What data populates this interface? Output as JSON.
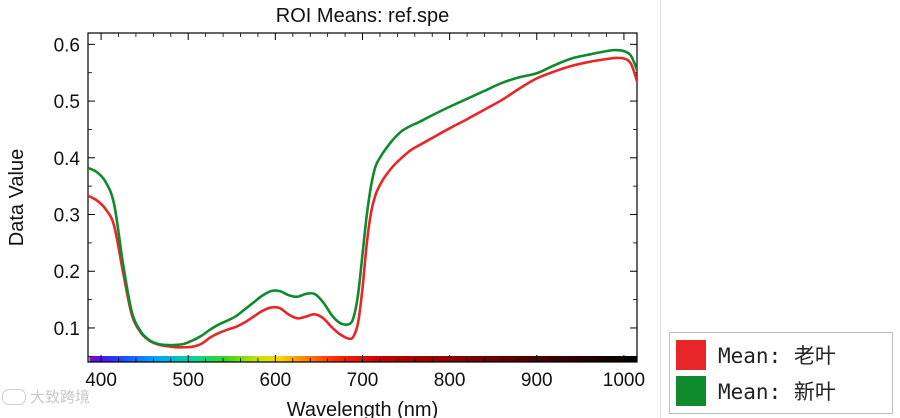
{
  "chart_data": {
    "type": "line",
    "title": "ROI Means: ref.spe",
    "xlabel": "Wavelength (nm)",
    "ylabel": "Data Value",
    "xlim": [
      385,
      1015
    ],
    "ylim": [
      0.04,
      0.62
    ],
    "x_ticks": [
      400,
      500,
      600,
      700,
      800,
      900,
      1000
    ],
    "x_tick_labels": [
      "400",
      "500",
      "600",
      "700",
      "800",
      "900",
      "1000"
    ],
    "y_ticks": [
      0.1,
      0.2,
      0.3,
      0.4,
      0.5,
      0.6
    ],
    "y_tick_labels": [
      "0.1",
      "0.2",
      "0.3",
      "0.4",
      "0.5",
      "0.6"
    ],
    "grid": false,
    "legend_position": "right-bottom",
    "series": [
      {
        "name": "Mean: 老叶",
        "color": "#e8262a",
        "x": [
          385,
          395,
          405,
          415,
          425,
          435,
          445,
          455,
          465,
          475,
          485,
          495,
          505,
          515,
          525,
          535,
          545,
          555,
          565,
          575,
          585,
          595,
          605,
          615,
          625,
          635,
          645,
          655,
          665,
          675,
          685,
          690,
          695,
          700,
          705,
          710,
          715,
          720,
          725,
          735,
          745,
          755,
          765,
          780,
          800,
          820,
          840,
          860,
          880,
          900,
          920,
          940,
          960,
          980,
          990,
          1000,
          1008,
          1015
        ],
        "y": [
          0.333,
          0.325,
          0.31,
          0.28,
          0.2,
          0.125,
          0.093,
          0.078,
          0.071,
          0.068,
          0.066,
          0.066,
          0.067,
          0.072,
          0.083,
          0.091,
          0.097,
          0.102,
          0.11,
          0.12,
          0.13,
          0.136,
          0.135,
          0.124,
          0.117,
          0.12,
          0.124,
          0.117,
          0.101,
          0.088,
          0.081,
          0.086,
          0.11,
          0.17,
          0.25,
          0.305,
          0.335,
          0.352,
          0.365,
          0.385,
          0.4,
          0.413,
          0.422,
          0.435,
          0.452,
          0.468,
          0.485,
          0.502,
          0.522,
          0.54,
          0.552,
          0.562,
          0.569,
          0.574,
          0.576,
          0.575,
          0.566,
          0.535
        ]
      },
      {
        "name": "Mean: 新叶",
        "color": "#0f8a2c",
        "x": [
          385,
          395,
          405,
          415,
          425,
          435,
          445,
          455,
          465,
          475,
          485,
          495,
          505,
          515,
          525,
          535,
          545,
          555,
          565,
          575,
          585,
          595,
          605,
          615,
          625,
          635,
          645,
          655,
          665,
          675,
          685,
          690,
          695,
          700,
          705,
          710,
          715,
          720,
          725,
          735,
          745,
          755,
          765,
          780,
          800,
          820,
          840,
          860,
          880,
          900,
          920,
          940,
          960,
          980,
          990,
          1000,
          1008,
          1015
        ],
        "y": [
          0.382,
          0.375,
          0.358,
          0.318,
          0.215,
          0.13,
          0.095,
          0.079,
          0.072,
          0.07,
          0.07,
          0.072,
          0.078,
          0.086,
          0.097,
          0.106,
          0.113,
          0.121,
          0.133,
          0.145,
          0.157,
          0.165,
          0.165,
          0.158,
          0.155,
          0.16,
          0.16,
          0.145,
          0.122,
          0.108,
          0.107,
          0.12,
          0.16,
          0.23,
          0.3,
          0.352,
          0.385,
          0.4,
          0.412,
          0.432,
          0.447,
          0.456,
          0.463,
          0.475,
          0.49,
          0.504,
          0.518,
          0.532,
          0.542,
          0.549,
          0.563,
          0.575,
          0.582,
          0.588,
          0.59,
          0.588,
          0.58,
          0.555
        ]
      }
    ]
  },
  "legend": {
    "items": [
      {
        "label": "Mean: 老叶",
        "color": "#e8262a"
      },
      {
        "label": "Mean: 新叶",
        "color": "#0f8a2c"
      }
    ]
  },
  "watermark": {
    "text": "大致跨境"
  }
}
